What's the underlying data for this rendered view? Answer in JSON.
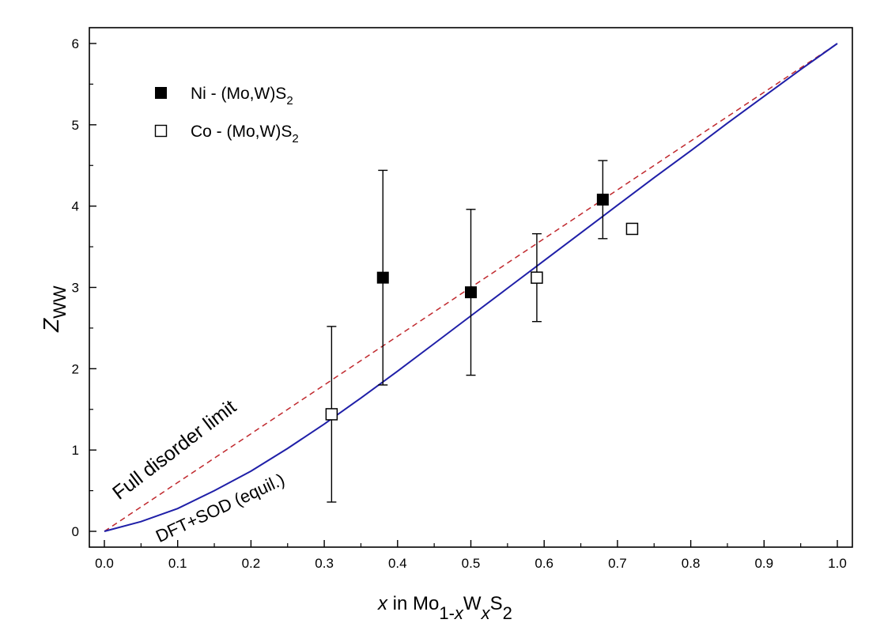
{
  "chart_data": {
    "type": "scatter",
    "xlim": [
      0.0,
      1.0
    ],
    "ylim": [
      0,
      6
    ],
    "x_ticks": [
      "0.0",
      "0.1",
      "0.2",
      "0.3",
      "0.4",
      "0.5",
      "0.6",
      "0.7",
      "0.8",
      "0.9",
      "1.0"
    ],
    "y_ticks": [
      "0",
      "1",
      "2",
      "3",
      "4",
      "5",
      "6"
    ],
    "xlabel": {
      "italic": "x",
      "text": " in  Mo",
      "sub1": "1-",
      "sub1_italic": "x",
      "mid": "W",
      "sub2_italic": "x",
      "end": "S",
      "sub3": "2"
    },
    "ylabel": {
      "main": "Z",
      "sub": "WW"
    },
    "grid": false,
    "legend_position": "top-left",
    "legend": [
      {
        "label": "Ni - (Mo,W)S",
        "sub": "2",
        "marker": "filled-square"
      },
      {
        "label": "Co - (Mo,W)S",
        "sub": "2",
        "marker": "open-square"
      }
    ],
    "series": [
      {
        "name": "Ni - (Mo,W)S2",
        "marker": "filled-square",
        "points": [
          {
            "x": 0.38,
            "y": 3.12,
            "err_low": 1.8,
            "err_high": 4.44
          },
          {
            "x": 0.5,
            "y": 2.94,
            "err_low": 1.92,
            "err_high": 3.96
          },
          {
            "x": 0.68,
            "y": 4.08,
            "err_low": 3.6,
            "err_high": 4.56
          }
        ]
      },
      {
        "name": "Co - (Mo,W)S2",
        "marker": "open-square",
        "points": [
          {
            "x": 0.31,
            "y": 1.44,
            "err_low": 0.36,
            "err_high": 2.52
          },
          {
            "x": 0.59,
            "y": 3.12,
            "err_low": 2.58,
            "err_high": 3.66
          },
          {
            "x": 0.72,
            "y": 3.72,
            "err_low": null,
            "err_high": null
          }
        ]
      }
    ],
    "lines": [
      {
        "name": "Full disorder limit",
        "style": "dashed",
        "color": "#c0282d",
        "x": [
          0.0,
          1.0
        ],
        "y": [
          0.0,
          6.0
        ]
      },
      {
        "name": "DFT+SOD (equil.)",
        "style": "solid",
        "color": "#1f1fa8",
        "x": [
          0.0,
          0.05,
          0.1,
          0.15,
          0.2,
          0.25,
          0.3,
          0.35,
          0.4,
          0.45,
          0.5,
          0.55,
          0.6,
          0.65,
          0.7,
          0.75,
          0.8,
          0.85,
          0.9,
          0.95,
          1.0
        ],
        "y": [
          0.0,
          0.12,
          0.28,
          0.5,
          0.74,
          1.02,
          1.32,
          1.64,
          1.97,
          2.31,
          2.65,
          2.99,
          3.33,
          3.67,
          4.01,
          4.35,
          4.68,
          5.02,
          5.35,
          5.68,
          6.0
        ]
      }
    ],
    "annotations": [
      {
        "text": "Full disorder limit",
        "color": "#c0282d"
      },
      {
        "text": "DFT+SOD (equil.)",
        "color": "#1f1fa8"
      }
    ]
  }
}
